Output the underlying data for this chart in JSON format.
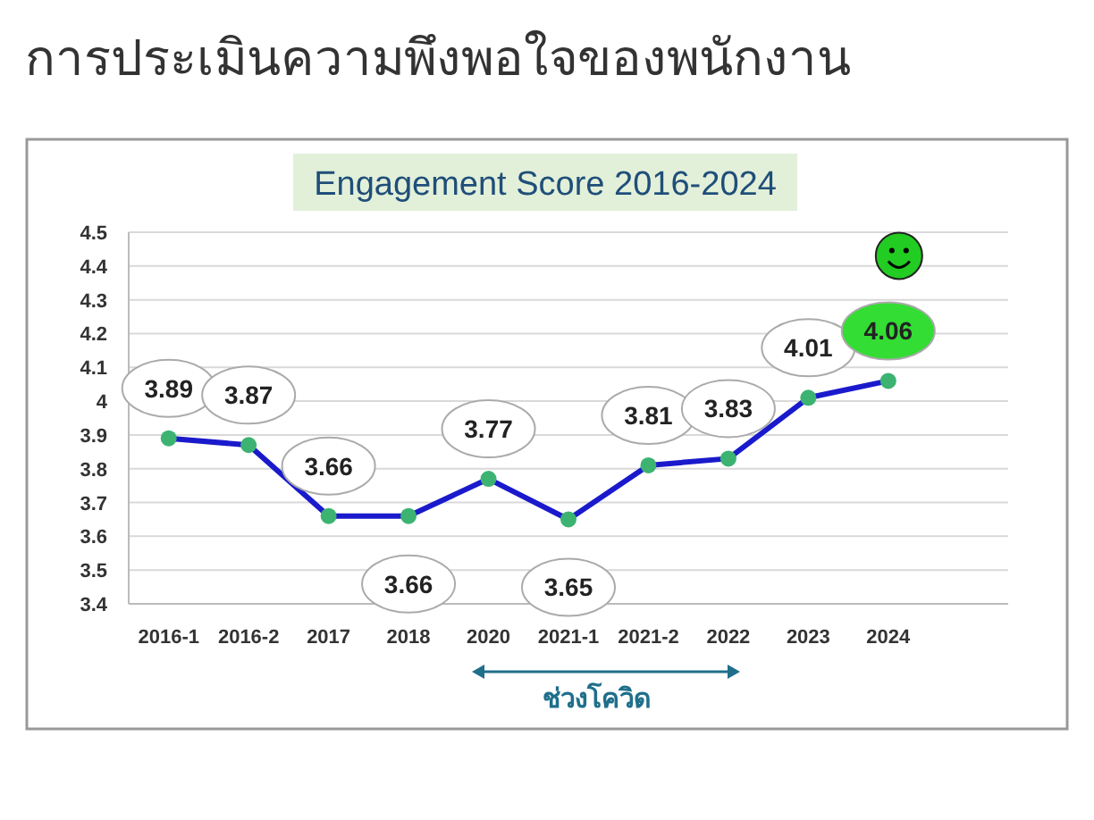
{
  "chart_data": {
    "type": "line",
    "title": "การประเมินความพึงพอใจของพนักงาน",
    "subtitle": "Engagement Score 2016-2024",
    "categories": [
      "2016-1",
      "2016-2",
      "2017",
      "2018",
      "2020",
      "2021-1",
      "2021-2",
      "2022",
      "2023",
      "2024",
      null
    ],
    "series": [
      {
        "color": "#1a1acc",
        "values": [
          3.89,
          3.87,
          3.66,
          3.66,
          3.77,
          3.65,
          3.81,
          3.83,
          4.01,
          4.06,
          null
        ]
      }
    ],
    "ylim": [
      3.4,
      4.5
    ],
    "yticks": [
      3.4,
      3.5,
      3.6,
      3.7,
      3.8,
      3.9,
      4,
      4.1,
      4.2,
      4.3,
      4.4,
      4.5
    ],
    "grid": "y",
    "marker": "circle",
    "line_style": "solid",
    "data_labels": true,
    "annotations": [
      "ช่วงโควิด"
    ]
  }
}
